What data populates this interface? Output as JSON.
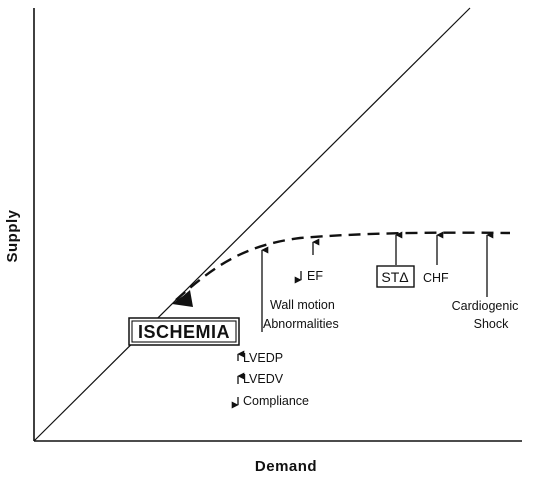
{
  "axes": {
    "x_label": "Demand",
    "y_label": "Supply"
  },
  "labels": {
    "ischemia": "ISCHEMIA",
    "lvedp": "LVEDP",
    "lvedv": "LVEDV",
    "compliance": "Compliance",
    "wall_motion_1": "Wall motion",
    "wall_motion_2": "Abnormalities",
    "ef": "EF",
    "st_change": "STΔ",
    "chf": "CHF",
    "shock_1": "Cardiogenic",
    "shock_2": "Shock"
  },
  "colors": {
    "ink": "#111111",
    "background": "#ffffff"
  }
}
